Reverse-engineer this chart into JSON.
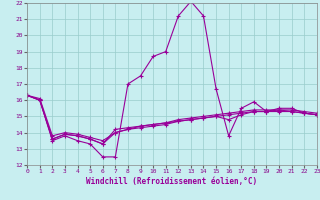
{
  "xlabel": "Windchill (Refroidissement éolien,°C)",
  "xlim": [
    0,
    23
  ],
  "ylim": [
    12,
    22
  ],
  "yticks": [
    12,
    13,
    14,
    15,
    16,
    17,
    18,
    19,
    20,
    21,
    22
  ],
  "xticks": [
    0,
    1,
    2,
    3,
    4,
    5,
    6,
    7,
    8,
    9,
    10,
    11,
    12,
    13,
    14,
    15,
    16,
    17,
    18,
    19,
    20,
    21,
    22,
    23
  ],
  "background_color": "#c8eef0",
  "grid_color": "#99cccc",
  "line_color": "#990099",
  "lines": [
    {
      "x": [
        0,
        1,
        2,
        3,
        4,
        5,
        6,
        7,
        8,
        9,
        10,
        11,
        12,
        13,
        14,
        15,
        16,
        17,
        18,
        19,
        20,
        21,
        22,
        23
      ],
      "y": [
        16.3,
        16.0,
        13.5,
        13.8,
        13.5,
        13.3,
        12.5,
        12.5,
        17.0,
        17.5,
        18.7,
        19.0,
        21.2,
        22.1,
        21.2,
        16.7,
        13.8,
        15.5,
        15.9,
        15.3,
        15.5,
        15.5,
        15.2,
        15.1
      ]
    },
    {
      "x": [
        0,
        1,
        2,
        3,
        4,
        5,
        6,
        7,
        8,
        9,
        10,
        11,
        12,
        13,
        14,
        15,
        16,
        17,
        18,
        19,
        20,
        21,
        22,
        23
      ],
      "y": [
        16.3,
        16.0,
        13.6,
        13.9,
        13.8,
        13.6,
        13.3,
        14.2,
        14.3,
        14.4,
        14.5,
        14.6,
        14.7,
        14.8,
        14.9,
        15.0,
        14.8,
        15.1,
        15.3,
        15.3,
        15.4,
        15.4,
        15.3,
        15.2
      ]
    },
    {
      "x": [
        0,
        1,
        2,
        3,
        4,
        5,
        6,
        7,
        8,
        9,
        10,
        11,
        12,
        13,
        14,
        15,
        16,
        17,
        18,
        19,
        20,
        21,
        22,
        23
      ],
      "y": [
        16.3,
        16.0,
        13.6,
        13.9,
        13.8,
        13.6,
        13.3,
        14.0,
        14.2,
        14.3,
        14.4,
        14.5,
        14.7,
        14.8,
        14.9,
        15.0,
        15.1,
        15.2,
        15.3,
        15.3,
        15.3,
        15.3,
        15.2,
        15.1
      ]
    },
    {
      "x": [
        0,
        1,
        2,
        3,
        4,
        5,
        6,
        7,
        8,
        9,
        10,
        11,
        12,
        13,
        14,
        15,
        16,
        17,
        18,
        19,
        20,
        21,
        22,
        23
      ],
      "y": [
        16.3,
        16.1,
        13.8,
        14.0,
        13.9,
        13.7,
        13.5,
        14.0,
        14.2,
        14.4,
        14.5,
        14.6,
        14.8,
        14.9,
        15.0,
        15.1,
        15.2,
        15.3,
        15.4,
        15.4,
        15.4,
        15.3,
        15.2,
        15.1
      ]
    }
  ]
}
